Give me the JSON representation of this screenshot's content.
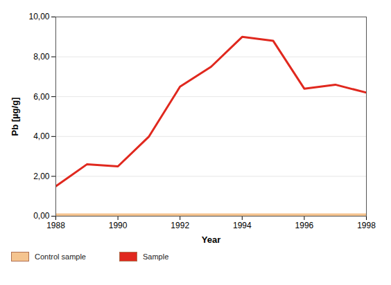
{
  "chart_data": {
    "type": "line",
    "x_label": "Year",
    "y_label": "Pb [µg/g]",
    "x": [
      1988,
      1989,
      1990,
      1991,
      1992,
      1993,
      1994,
      1995,
      1996,
      1997,
      1998
    ],
    "series": [
      {
        "name": "Control sample",
        "color": "#f5c48f",
        "values": [
          0,
          0,
          0,
          0,
          0,
          0,
          0,
          0,
          0,
          0,
          0
        ]
      },
      {
        "name": "Sample",
        "color": "#e0281e",
        "values": [
          1.5,
          2.6,
          2.5,
          4.0,
          6.5,
          7.5,
          9.0,
          8.8,
          6.4,
          6.6,
          6.2
        ]
      }
    ],
    "xlim": [
      1988,
      1998
    ],
    "xticks": [
      1988,
      1990,
      1992,
      1994,
      1996,
      1998
    ],
    "ylim": [
      0,
      10
    ],
    "yticks": [
      {
        "value": 0,
        "label": "0,00"
      },
      {
        "value": 2,
        "label": "2,00"
      },
      {
        "value": 4,
        "label": "4,00"
      },
      {
        "value": 6,
        "label": "6,00"
      },
      {
        "value": 8,
        "label": "8,00"
      },
      {
        "value": 10,
        "label": "10,00"
      }
    ],
    "grid": true,
    "legend": "bottom-left"
  }
}
